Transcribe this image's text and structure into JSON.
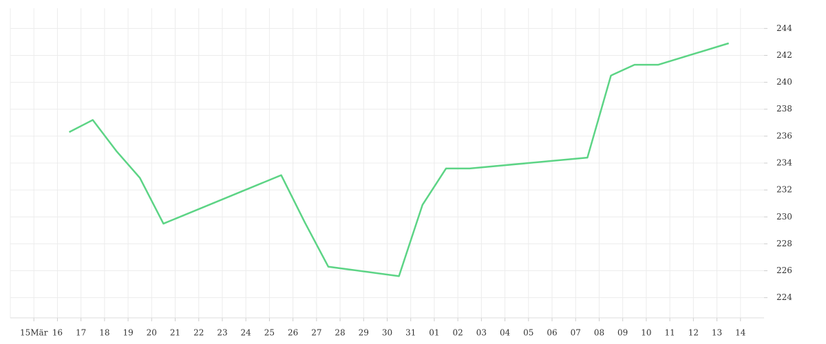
{
  "chart_data": {
    "type": "line",
    "xlim": [
      -1,
      31
    ],
    "xticks": [
      {
        "value": 0,
        "label": "15Mär"
      },
      {
        "value": 1,
        "label": "16"
      },
      {
        "value": 2,
        "label": "17"
      },
      {
        "value": 3,
        "label": "18"
      },
      {
        "value": 4,
        "label": "19"
      },
      {
        "value": 5,
        "label": "20"
      },
      {
        "value": 6,
        "label": "21"
      },
      {
        "value": 7,
        "label": "22"
      },
      {
        "value": 8,
        "label": "23"
      },
      {
        "value": 9,
        "label": "24"
      },
      {
        "value": 10,
        "label": "25"
      },
      {
        "value": 11,
        "label": "26"
      },
      {
        "value": 12,
        "label": "27"
      },
      {
        "value": 13,
        "label": "28"
      },
      {
        "value": 14,
        "label": "29"
      },
      {
        "value": 15,
        "label": "30"
      },
      {
        "value": 16,
        "label": "31"
      },
      {
        "value": 17,
        "label": "01"
      },
      {
        "value": 18,
        "label": "02"
      },
      {
        "value": 19,
        "label": "03"
      },
      {
        "value": 20,
        "label": "04"
      },
      {
        "value": 21,
        "label": "05"
      },
      {
        "value": 22,
        "label": "06"
      },
      {
        "value": 23,
        "label": "07"
      },
      {
        "value": 24,
        "label": "08"
      },
      {
        "value": 25,
        "label": "09"
      },
      {
        "value": 26,
        "label": "10"
      },
      {
        "value": 27,
        "label": "11"
      },
      {
        "value": 28,
        "label": "12"
      },
      {
        "value": 29,
        "label": "13"
      },
      {
        "value": 30,
        "label": "14"
      }
    ],
    "ylim": [
      222.5,
      245.5
    ],
    "yticks": [
      224,
      226,
      228,
      230,
      232,
      234,
      236,
      238,
      240,
      242,
      244
    ],
    "grid": true,
    "series": [
      {
        "color": "#5cd485",
        "x": [
          1.5,
          2.5,
          3.5,
          4.5,
          5.5,
          10.5,
          11.5,
          12.5,
          15.5,
          16.5,
          17.5,
          18.5,
          23.5,
          24.5,
          25.5,
          26.5,
          29.5
        ],
        "values": [
          236.3,
          237.2,
          234.9,
          232.9,
          229.5,
          233.1,
          229.6,
          226.3,
          225.6,
          230.9,
          233.6,
          233.6,
          234.4,
          240.5,
          241.3,
          241.3,
          242.9
        ]
      }
    ]
  }
}
